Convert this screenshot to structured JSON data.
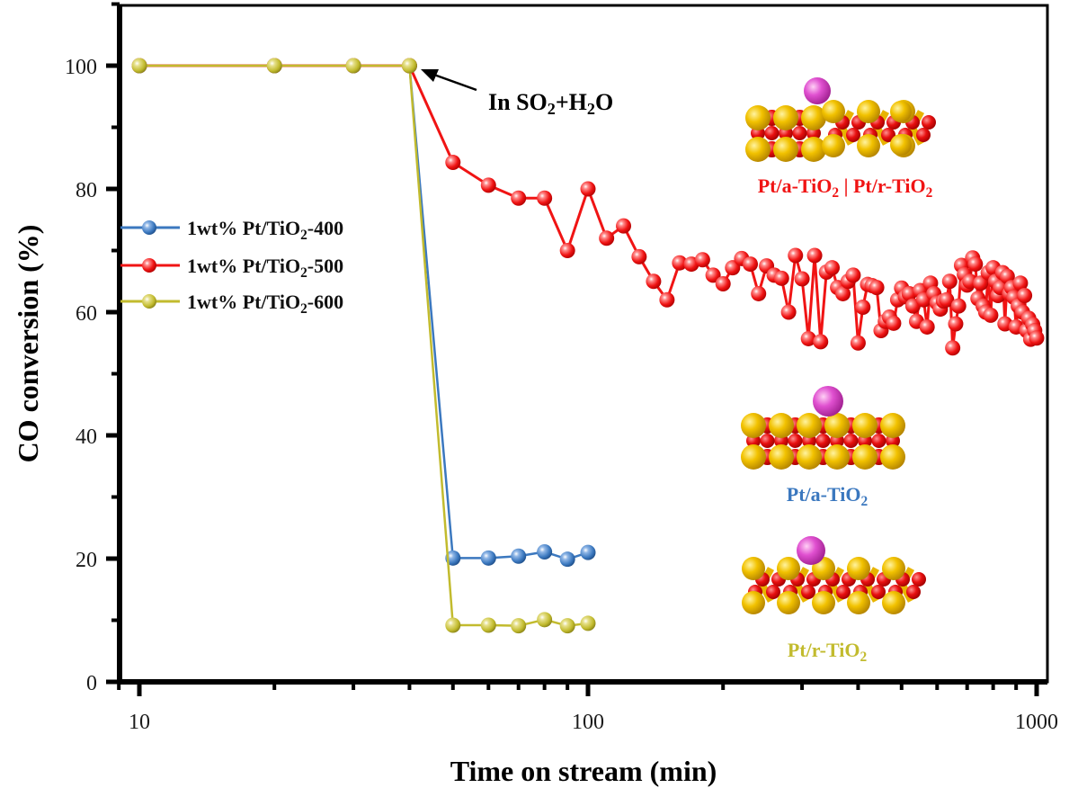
{
  "chart_data": {
    "type": "line",
    "title": "",
    "xlabel": "Time on stream (min)",
    "ylabel": "CO conversion (%)",
    "xscale": "log",
    "xlim": [
      9,
      1057
    ],
    "ylim": [
      0,
      110
    ],
    "xticks": [
      10,
      100,
      1000
    ],
    "xtick_labels": [
      "10",
      "100",
      "1000"
    ],
    "yticks": [
      0,
      20,
      40,
      60,
      80,
      100
    ],
    "ytick_labels": [
      "0",
      "20",
      "40",
      "60",
      "80",
      "100"
    ],
    "grid": false,
    "legend_position": "center-left",
    "series": [
      {
        "name": "1wt% Pt/TiO2-400",
        "label_main": "1wt% Pt/TiO",
        "label_sub": "2",
        "label_tail": "-400",
        "color": "#3B78BF",
        "x": [
          10,
          20,
          30,
          40,
          50,
          60,
          70,
          80,
          90,
          100
        ],
        "y": [
          100,
          100,
          100,
          100,
          20.1,
          20.1,
          20.4,
          21.1,
          19.9,
          21.0
        ]
      },
      {
        "name": "1wt% Pt/TiO2-500",
        "label_main": "1wt% Pt/TiO",
        "label_sub": "2",
        "label_tail": "-500",
        "color": "#F01414",
        "x": [
          10,
          20,
          30,
          40,
          50,
          60,
          70,
          80,
          90,
          100,
          110,
          120,
          130,
          140,
          150,
          160,
          170,
          180,
          190,
          200,
          210,
          220,
          230,
          240,
          250,
          260,
          270,
          280,
          290,
          300,
          310,
          320,
          330,
          340,
          350,
          360,
          370,
          380,
          390,
          400,
          410,
          420,
          430,
          440,
          450,
          460,
          470,
          480,
          490,
          500,
          510,
          520,
          530,
          540,
          550,
          560,
          570,
          580,
          590,
          600,
          610,
          620,
          630,
          640,
          650,
          660,
          670,
          680,
          690,
          700,
          710,
          720,
          730,
          740,
          750,
          760,
          770,
          780,
          790,
          800,
          810,
          820,
          830,
          840,
          850,
          860,
          870,
          880,
          890,
          900,
          910,
          920,
          930,
          940,
          950,
          960,
          970,
          980,
          990,
          1000
        ],
        "y": [
          100,
          100,
          100,
          100,
          84.3,
          80.6,
          78.5,
          78.5,
          70.0,
          80.0,
          72.0,
          74.0,
          69.0,
          65.0,
          62.0,
          68.0,
          67.8,
          68.5,
          66.0,
          64.6,
          67.2,
          68.7,
          67.8,
          63.0,
          67.5,
          66.0,
          65.5,
          60.0,
          69.2,
          65.4,
          55.7,
          69.2,
          55.2,
          66.5,
          67.2,
          64.0,
          63.0,
          65.0,
          66.0,
          55.0,
          60.8,
          64.5,
          64.3,
          64.0,
          57.0,
          58.5,
          59.2,
          58.2,
          62.0,
          63.9,
          62.5,
          63.0,
          61.0,
          58.5,
          63.5,
          62.0,
          57.6,
          64.7,
          63.0,
          61.5,
          60.5,
          61.8,
          62.0,
          65.0,
          54.2,
          58.1,
          61.0,
          67.6,
          66.1,
          64.4,
          65.0,
          68.8,
          67.8,
          62.2,
          64.7,
          61.0,
          60.0,
          66.4,
          59.5,
          67.2,
          65.0,
          62.7,
          64.0,
          66.4,
          58.1,
          65.8,
          63.0,
          64.0,
          62.4,
          57.6,
          61.0,
          64.7,
          60.0,
          62.7,
          57.0,
          59.0,
          55.6,
          58.0,
          57.0,
          55.8
        ]
      },
      {
        "name": "1wt% Pt/TiO2-600",
        "label_main": "1wt% Pt/TiO",
        "label_sub": "2",
        "label_tail": "-600",
        "color": "#C2BB2E",
        "x": [
          10,
          20,
          30,
          40,
          50,
          60,
          70,
          80,
          90,
          100
        ],
        "y": [
          100,
          100,
          100,
          100,
          9.2,
          9.2,
          9.1,
          10.1,
          9.1,
          9.5
        ]
      }
    ],
    "annotations": [
      {
        "type": "arrow",
        "points_to": [
          40,
          100
        ],
        "text_parts": [
          "In SO",
          "2",
          "+H",
          "2",
          "O"
        ],
        "color": "#000000"
      }
    ],
    "insets": [
      {
        "name": "Pt/a-TiO2 | Pt/r-TiO2",
        "text_parts": [
          "Pt/a-TiO",
          "2",
          " | Pt/r-TiO",
          "2"
        ],
        "color": "#F01414",
        "structure": "mixed-anatase-rutile"
      },
      {
        "name": "Pt/a-TiO2",
        "text_parts": [
          "Pt/a-TiO",
          "2"
        ],
        "color": "#3B78BF",
        "structure": "anatase"
      },
      {
        "name": "Pt/r-TiO2",
        "text_parts": [
          "Pt/r-TiO",
          "2"
        ],
        "color": "#C2BB2E",
        "structure": "rutile"
      }
    ],
    "atom_colors": {
      "ti": "#E8B400",
      "o": "#E81010",
      "pt": "#E040C8"
    }
  }
}
